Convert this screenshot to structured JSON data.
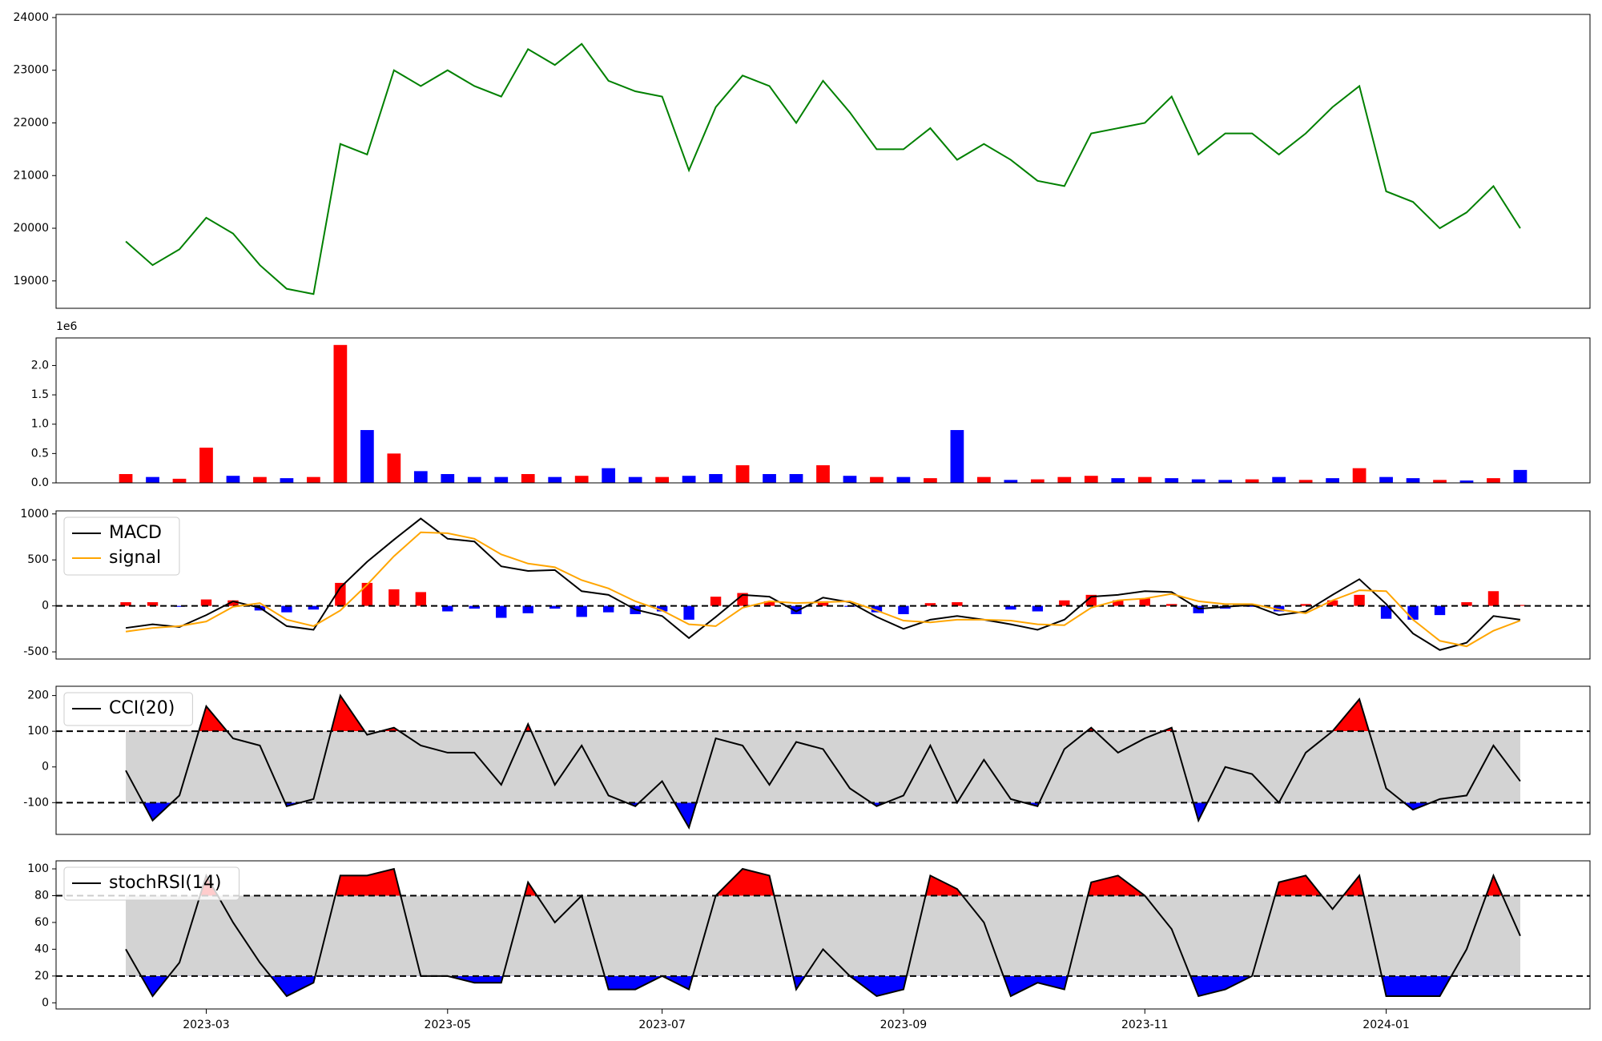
{
  "chart_data": [
    {
      "type": "line",
      "ylim": [
        18480,
        24060
      ],
      "yticks": [
        19000,
        20000,
        21000,
        22000,
        23000,
        24000
      ],
      "series": [
        {
          "color": "#008000",
          "values": [
            19750,
            19300,
            19600,
            20200,
            19900,
            19300,
            18850,
            18750,
            21600,
            21400,
            23000,
            22700,
            23000,
            22700,
            22500,
            23400,
            23100,
            23500,
            22800,
            22600,
            22500,
            21100,
            22300,
            22900,
            22700,
            22000,
            22800,
            22200,
            21500,
            21500,
            21900,
            21300,
            21600,
            21300,
            20900,
            20800,
            21800,
            21900,
            22000,
            22500,
            21400,
            21800,
            21800,
            21400,
            21800,
            22300,
            22700,
            20700,
            20500,
            20000,
            20300,
            20800,
            20000
          ]
        }
      ]
    },
    {
      "type": "bar",
      "offset_label": "1e6",
      "ylim": [
        0,
        2.47
      ],
      "yticks": [
        {
          "value": 0,
          "label": "0.0"
        },
        {
          "value": 0.5,
          "label": "0.5"
        },
        {
          "value": 1,
          "label": "1.0"
        },
        {
          "value": 1.5,
          "label": "1.5"
        },
        {
          "value": 2,
          "label": "2.0"
        }
      ],
      "values": [
        0.15,
        0.1,
        0.07,
        0.6,
        0.12,
        0.1,
        0.08,
        0.1,
        2.35,
        0.9,
        0.5,
        0.2,
        0.15,
        0.1,
        0.1,
        0.15,
        0.1,
        0.12,
        0.25,
        0.1,
        0.1,
        0.12,
        0.15,
        0.3,
        0.15,
        0.15,
        0.3,
        0.12,
        0.1,
        0.1,
        0.08,
        0.9,
        0.1,
        0.05,
        0.06,
        0.1,
        0.12,
        0.08,
        0.1,
        0.08,
        0.06,
        0.05,
        0.06,
        0.1,
        0.05,
        0.08,
        0.25,
        0.1,
        0.08,
        0.05,
        0.04,
        0.08,
        0.22
      ],
      "colors": [
        "red",
        "blue",
        "red",
        "red",
        "blue",
        "red",
        "blue",
        "red",
        "red",
        "blue",
        "red",
        "blue",
        "blue",
        "blue",
        "blue",
        "red",
        "blue",
        "red",
        "blue",
        "blue",
        "red",
        "blue",
        "blue",
        "red",
        "blue",
        "blue",
        "red",
        "blue",
        "red",
        "blue",
        "red",
        "blue",
        "red",
        "blue",
        "red",
        "red",
        "red",
        "blue",
        "red",
        "blue",
        "blue",
        "blue",
        "red",
        "blue",
        "red",
        "blue",
        "red",
        "blue",
        "blue",
        "red",
        "blue",
        "red",
        "blue"
      ]
    },
    {
      "type": "line",
      "legend": true,
      "zero_line": 0,
      "ylim": [
        -578,
        1033
      ],
      "yticks": [
        -500,
        0,
        500,
        1000
      ],
      "series": [
        {
          "type": "bar",
          "pos_color": "red",
          "neg_color": "blue",
          "values": [
            40,
            40,
            -10,
            70,
            60,
            -50,
            -70,
            -40,
            250,
            250,
            180,
            150,
            -60,
            -30,
            -130,
            -80,
            -30,
            -120,
            -70,
            -90,
            -60,
            -150,
            100,
            140,
            50,
            -90,
            50,
            -10,
            -70,
            -90,
            30,
            40,
            0,
            -40,
            -60,
            60,
            120,
            60,
            80,
            20,
            -80,
            -30,
            -10,
            -60,
            20,
            60,
            120,
            -140,
            -150,
            -100,
            40,
            160,
            10
          ]
        },
        {
          "name": "MACD",
          "color": "#000000",
          "values": [
            -240,
            -200,
            -230,
            -100,
            50,
            -20,
            -220,
            -260,
            200,
            480,
            720,
            950,
            730,
            700,
            430,
            380,
            390,
            160,
            120,
            -40,
            -110,
            -350,
            -120,
            120,
            100,
            -60,
            90,
            40,
            -120,
            -250,
            -150,
            -110,
            -150,
            -200,
            -260,
            -150,
            100,
            120,
            160,
            150,
            -30,
            -10,
            10,
            -100,
            -60,
            120,
            290,
            20,
            -300,
            -480,
            -400,
            -110,
            -150
          ]
        },
        {
          "name": "signal",
          "color": "#ffa500",
          "values": [
            -280,
            -240,
            -220,
            -170,
            -10,
            30,
            -150,
            -220,
            -50,
            230,
            540,
            800,
            790,
            730,
            560,
            460,
            420,
            280,
            190,
            50,
            -50,
            -200,
            -220,
            -20,
            50,
            30,
            40,
            50,
            -50,
            -160,
            -180,
            -150,
            -150,
            -160,
            -200,
            -210,
            -20,
            60,
            80,
            130,
            50,
            20,
            20,
            -40,
            -80,
            60,
            170,
            160,
            -150,
            -380,
            -440,
            -270,
            -160
          ]
        }
      ]
    },
    {
      "type": "line",
      "legend": true,
      "thresholds": [
        100,
        -100
      ],
      "band_color": "#d3d3d3",
      "fill_colors": [
        "red",
        "blue"
      ],
      "ylim": [
        -189,
        226
      ],
      "yticks": [
        -100,
        0,
        100,
        200
      ],
      "series": [
        {
          "name": "CCI(20)",
          "color": "#000000",
          "values": [
            -10,
            -150,
            -80,
            170,
            80,
            60,
            -110,
            -90,
            200,
            90,
            110,
            60,
            40,
            40,
            -50,
            120,
            -50,
            60,
            -80,
            -110,
            -40,
            -170,
            80,
            60,
            -50,
            70,
            50,
            -60,
            -110,
            -80,
            60,
            -100,
            20,
            -90,
            -110,
            50,
            110,
            40,
            80,
            110,
            -150,
            0,
            -20,
            -100,
            40,
            100,
            190,
            -60,
            -120,
            -90,
            -80,
            60,
            -40
          ]
        }
      ]
    },
    {
      "type": "line",
      "legend": true,
      "thresholds": [
        80,
        20
      ],
      "band_color": "#d3d3d3",
      "fill_colors": [
        "red",
        "blue"
      ],
      "ylim": [
        -4.6,
        106
      ],
      "yticks": [
        0,
        20,
        40,
        60,
        80,
        100
      ],
      "categories": [
        null,
        null,
        null,
        "2023-03",
        null,
        null,
        null,
        null,
        null,
        null,
        null,
        null,
        "2023-05",
        null,
        null,
        null,
        null,
        null,
        null,
        null,
        "2023-07",
        null,
        null,
        null,
        null,
        null,
        null,
        null,
        null,
        "2023-09",
        null,
        null,
        null,
        null,
        null,
        null,
        null,
        null,
        "2023-11",
        null,
        null,
        null,
        null,
        null,
        null,
        null,
        null,
        "2024-01",
        null,
        null,
        null,
        null,
        null
      ],
      "series": [
        {
          "name": "stochRSI(14)",
          "color": "#000000",
          "values": [
            40,
            5,
            30,
            95,
            60,
            30,
            5,
            15,
            95,
            95,
            100,
            20,
            20,
            15,
            15,
            90,
            60,
            80,
            10,
            10,
            20,
            10,
            80,
            100,
            95,
            10,
            40,
            20,
            5,
            10,
            95,
            85,
            60,
            5,
            15,
            10,
            90,
            95,
            80,
            55,
            5,
            10,
            20,
            90,
            95,
            70,
            95,
            5,
            5,
            5,
            40,
            95,
            50
          ]
        }
      ]
    }
  ]
}
